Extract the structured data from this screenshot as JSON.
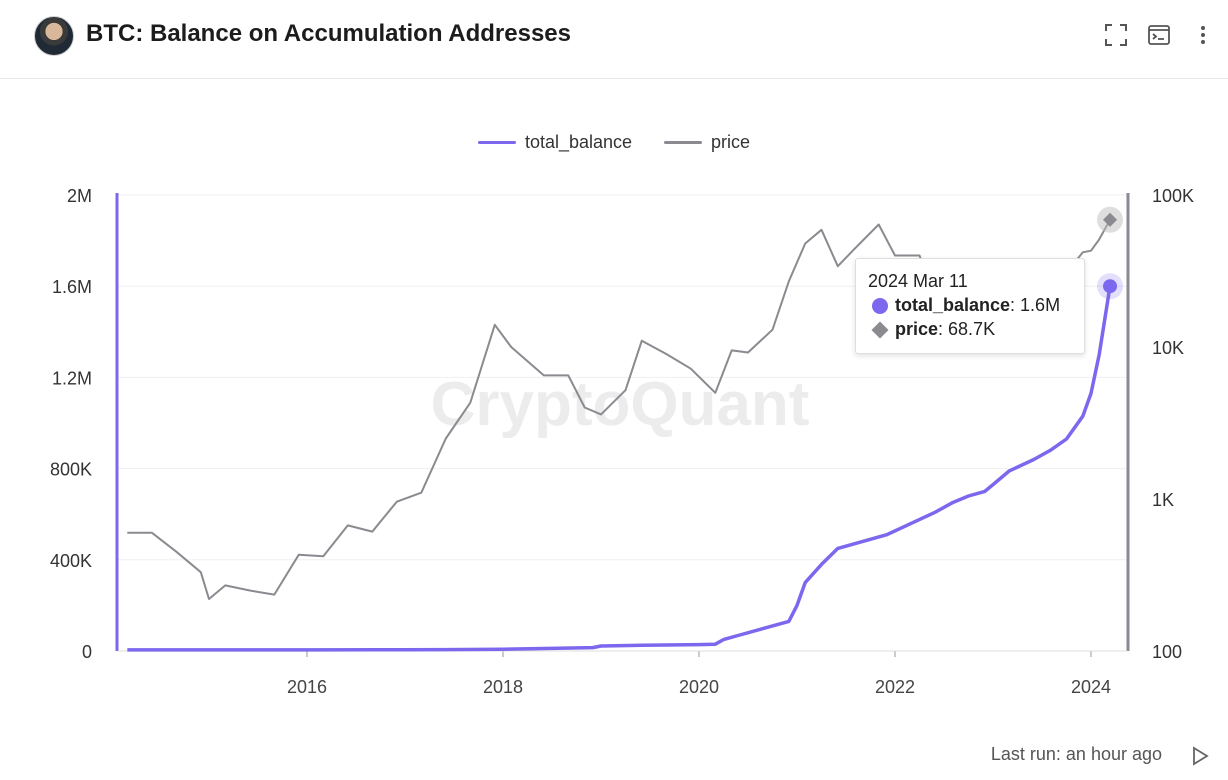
{
  "header": {
    "title": "BTC: Balance on Accumulation Addresses",
    "icons": [
      "fullscreen-icon",
      "terminal-icon",
      "more-vertical-icon"
    ]
  },
  "footer": {
    "last_run": "Last run: an hour ago"
  },
  "tooltip": {
    "date": "2024 Mar 11",
    "rows": [
      {
        "name": "total_balance",
        "value": ": 1.6M"
      },
      {
        "name": "price",
        "value": ": 68.7K"
      }
    ]
  },
  "colors": {
    "total_balance": "#7b68ee",
    "price": "#8a8a90",
    "grid": "#efefef"
  },
  "chart_data": {
    "type": "line",
    "watermark": "CryptoQuant",
    "legend": [
      "total_balance",
      "price"
    ],
    "legend_position": "top-center",
    "grid": true,
    "x_ticks": [
      "2016",
      "2018",
      "2020",
      "2022",
      "2024"
    ],
    "y_left": {
      "range": [
        0,
        2000000
      ],
      "ticks": [
        "0",
        "400K",
        "800K",
        "1.2M",
        "1.6M",
        "2M"
      ]
    },
    "y_right": {
      "scale": "log",
      "range": [
        100,
        100000
      ],
      "ticks": [
        "100",
        "1K",
        "10K",
        "100K"
      ]
    },
    "series": [
      {
        "name": "total_balance",
        "axis": "left",
        "points": [
          [
            "2014-03",
            5000
          ],
          [
            "2015-01",
            5000
          ],
          [
            "2016-01",
            5000
          ],
          [
            "2017-01",
            5500
          ],
          [
            "2017-06",
            6000
          ],
          [
            "2018-01",
            8000
          ],
          [
            "2018-06",
            11000
          ],
          [
            "2018-12",
            15000
          ],
          [
            "2019-01",
            22000
          ],
          [
            "2019-06",
            25000
          ],
          [
            "2020-01",
            28000
          ],
          [
            "2020-03",
            30000
          ],
          [
            "2020-04",
            50000
          ],
          [
            "2020-06",
            70000
          ],
          [
            "2020-09",
            100000
          ],
          [
            "2020-12",
            130000
          ],
          [
            "2021-01",
            200000
          ],
          [
            "2021-02",
            300000
          ],
          [
            "2021-04",
            380000
          ],
          [
            "2021-06",
            450000
          ],
          [
            "2021-09",
            480000
          ],
          [
            "2021-12",
            510000
          ],
          [
            "2022-03",
            560000
          ],
          [
            "2022-06",
            610000
          ],
          [
            "2022-08",
            650000
          ],
          [
            "2022-10",
            680000
          ],
          [
            "2022-12",
            700000
          ],
          [
            "2023-01",
            730000
          ],
          [
            "2023-03",
            790000
          ],
          [
            "2023-06",
            840000
          ],
          [
            "2023-08",
            880000
          ],
          [
            "2023-10",
            930000
          ],
          [
            "2023-12",
            1030000
          ],
          [
            "2024-01",
            1130000
          ],
          [
            "2024-02",
            1300000
          ],
          [
            "2024-03-11",
            1600000
          ]
        ]
      },
      {
        "name": "price",
        "axis": "right",
        "points": [
          [
            "2014-03",
            600
          ],
          [
            "2014-06",
            600
          ],
          [
            "2014-09",
            450
          ],
          [
            "2014-12",
            330
          ],
          [
            "2015-01",
            220
          ],
          [
            "2015-03",
            270
          ],
          [
            "2015-06",
            250
          ],
          [
            "2015-09",
            235
          ],
          [
            "2015-12",
            430
          ],
          [
            "2016-03",
            420
          ],
          [
            "2016-06",
            670
          ],
          [
            "2016-09",
            610
          ],
          [
            "2016-12",
            960
          ],
          [
            "2017-03",
            1100
          ],
          [
            "2017-06",
            2500
          ],
          [
            "2017-09",
            4300
          ],
          [
            "2017-12",
            14000
          ],
          [
            "2018-02",
            10000
          ],
          [
            "2018-06",
            6500
          ],
          [
            "2018-09",
            6500
          ],
          [
            "2018-11",
            4000
          ],
          [
            "2019-01",
            3600
          ],
          [
            "2019-04",
            5200
          ],
          [
            "2019-06",
            11000
          ],
          [
            "2019-09",
            9000
          ],
          [
            "2019-12",
            7200
          ],
          [
            "2020-03",
            5000
          ],
          [
            "2020-05",
            9500
          ],
          [
            "2020-07",
            9200
          ],
          [
            "2020-10",
            13000
          ],
          [
            "2020-12",
            27000
          ],
          [
            "2021-02",
            48000
          ],
          [
            "2021-04",
            59000
          ],
          [
            "2021-06",
            34000
          ],
          [
            "2021-08",
            44000
          ],
          [
            "2021-11",
            64000
          ],
          [
            "2022-01",
            40000
          ],
          [
            "2022-04",
            40000
          ],
          [
            "2022-06",
            20000
          ],
          [
            "2022-09",
            19500
          ],
          [
            "2022-12",
            16500
          ],
          [
            "2023-03",
            27000
          ],
          [
            "2023-06",
            30000
          ],
          [
            "2023-09",
            26500
          ],
          [
            "2023-12",
            42000
          ],
          [
            "2024-01",
            43000
          ],
          [
            "2024-02",
            51000
          ],
          [
            "2024-03-11",
            68700
          ]
        ]
      }
    ]
  }
}
